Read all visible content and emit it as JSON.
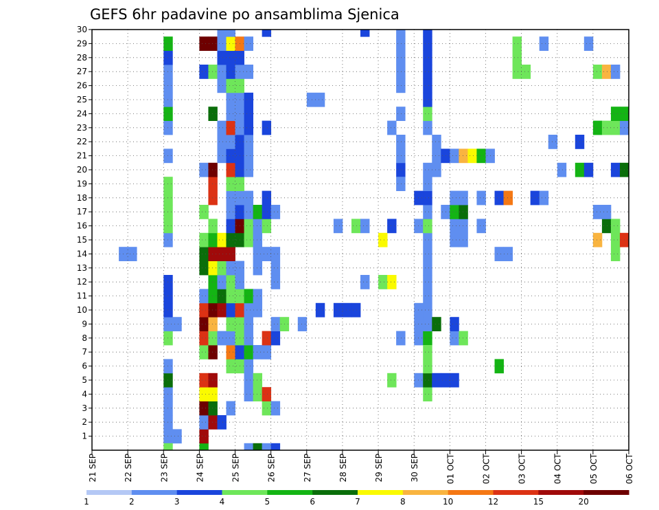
{
  "chart_data": {
    "type": "heatmap",
    "title": "GEFS 6hr padavine po ansamblima Sjenica",
    "x_ticks": [
      "21 SEP",
      "22 SEP",
      "23 SEP",
      "24 SEP",
      "25 SEP",
      "26 SEP",
      "27 SEP",
      "28 SEP",
      "29 SEP",
      "30 SEP",
      "01 OCT",
      "02 OCT",
      "03 OCT",
      "04 OCT",
      "05 OCT",
      "06 OCT"
    ],
    "y_ticks": [
      "1",
      "2",
      "3",
      "4",
      "5",
      "6",
      "7",
      "8",
      "9",
      "10",
      "11",
      "12",
      "13",
      "14",
      "15",
      "16",
      "17",
      "18",
      "19",
      "20",
      "21",
      "22",
      "23",
      "24",
      "25",
      "26",
      "27",
      "28",
      "29",
      "30"
    ],
    "xlim": [
      0,
      60
    ],
    "ylim": [
      0,
      30
    ],
    "grid": true,
    "colorbar": {
      "labels": [
        "1",
        "2",
        "3",
        "4",
        "5",
        "6",
        "7",
        "8",
        "10",
        "12",
        "15",
        "20"
      ],
      "colors": [
        "#b4c8f5",
        "#5f8ef0",
        "#1a45dc",
        "#6ee65a",
        "#14b414",
        "#0a6e0a",
        "#fafa00",
        "#f9b440",
        "#f57814",
        "#dc3214",
        "#a00a0a",
        "#6e0000"
      ]
    },
    "x_unit": "6-hour steps from 21 SEP 00Z",
    "y_unit": "ensemble member",
    "cells": [
      [
        8,
        1,
        1
      ],
      [
        8,
        2,
        1
      ],
      [
        8,
        3,
        1
      ],
      [
        8,
        4,
        1
      ],
      [
        8,
        5,
        5
      ],
      [
        8,
        6,
        1
      ],
      [
        8,
        8,
        3
      ],
      [
        8,
        9,
        1
      ],
      [
        8,
        10,
        2
      ],
      [
        8,
        11,
        2
      ],
      [
        8,
        12,
        2
      ],
      [
        8,
        15,
        1
      ],
      [
        8,
        16,
        3
      ],
      [
        8,
        17,
        3
      ],
      [
        8,
        18,
        3
      ],
      [
        8,
        19,
        3
      ],
      [
        8,
        21,
        1
      ],
      [
        8,
        23,
        1
      ],
      [
        8,
        24,
        4
      ],
      [
        8,
        25,
        1
      ],
      [
        8,
        26,
        1
      ],
      [
        8,
        27,
        1
      ],
      [
        8,
        28,
        2
      ],
      [
        8,
        29,
        4
      ],
      [
        9,
        1,
        1
      ],
      [
        9,
        9,
        1
      ],
      [
        3,
        14,
        1
      ],
      [
        4,
        14,
        1
      ],
      [
        8,
        0,
        3
      ],
      [
        12,
        0,
        4
      ],
      [
        12,
        1,
        10
      ],
      [
        12,
        2,
        1
      ],
      [
        12,
        3,
        11
      ],
      [
        12,
        4,
        6
      ],
      [
        12,
        5,
        9
      ],
      [
        12,
        7,
        3
      ],
      [
        12,
        8,
        9
      ],
      [
        12,
        9,
        11
      ],
      [
        12,
        10,
        9
      ],
      [
        12,
        11,
        1
      ],
      [
        12,
        13,
        5
      ],
      [
        12,
        14,
        5
      ],
      [
        12,
        15,
        3
      ],
      [
        12,
        17,
        3
      ],
      [
        12,
        20,
        1
      ],
      [
        12,
        27,
        2
      ],
      [
        12,
        29,
        11
      ],
      [
        13,
        2,
        10
      ],
      [
        13,
        3,
        5
      ],
      [
        13,
        4,
        6
      ],
      [
        13,
        5,
        10
      ],
      [
        13,
        7,
        11
      ],
      [
        13,
        8,
        3
      ],
      [
        13,
        9,
        7
      ],
      [
        13,
        10,
        11
      ],
      [
        13,
        11,
        4
      ],
      [
        13,
        12,
        4
      ],
      [
        13,
        13,
        6
      ],
      [
        13,
        14,
        10
      ],
      [
        13,
        15,
        4
      ],
      [
        13,
        16,
        3
      ],
      [
        13,
        18,
        9
      ],
      [
        13,
        19,
        9
      ],
      [
        13,
        20,
        11
      ],
      [
        13,
        24,
        5
      ],
      [
        13,
        27,
        3
      ],
      [
        13,
        29,
        11
      ],
      [
        14,
        2,
        2
      ],
      [
        14,
        8,
        1
      ],
      [
        14,
        10,
        10
      ],
      [
        14,
        11,
        5
      ],
      [
        14,
        12,
        1
      ],
      [
        14,
        13,
        3
      ],
      [
        14,
        14,
        10
      ],
      [
        14,
        15,
        6
      ],
      [
        14,
        21,
        1
      ],
      [
        14,
        22,
        1
      ],
      [
        14,
        23,
        1
      ],
      [
        14,
        26,
        1
      ],
      [
        14,
        27,
        1
      ],
      [
        14,
        28,
        2
      ],
      [
        14,
        29,
        1
      ],
      [
        14,
        30,
        1
      ],
      [
        15,
        3,
        1
      ],
      [
        15,
        6,
        3
      ],
      [
        15,
        7,
        8
      ],
      [
        15,
        8,
        1
      ],
      [
        15,
        9,
        3
      ],
      [
        15,
        10,
        2
      ],
      [
        15,
        11,
        3
      ],
      [
        15,
        12,
        3
      ],
      [
        15,
        13,
        1
      ],
      [
        15,
        14,
        10
      ],
      [
        15,
        15,
        5
      ],
      [
        15,
        16,
        2
      ],
      [
        15,
        17,
        1
      ],
      [
        15,
        18,
        1
      ],
      [
        15,
        19,
        3
      ],
      [
        15,
        20,
        9
      ],
      [
        15,
        21,
        2
      ],
      [
        15,
        22,
        1
      ],
      [
        15,
        23,
        9
      ],
      [
        15,
        24,
        1
      ],
      [
        15,
        25,
        1
      ],
      [
        15,
        26,
        3
      ],
      [
        15,
        27,
        2
      ],
      [
        15,
        28,
        2
      ],
      [
        15,
        29,
        6
      ],
      [
        15,
        30,
        1
      ],
      [
        16,
        6,
        3
      ],
      [
        16,
        7,
        2
      ],
      [
        16,
        8,
        3
      ],
      [
        16,
        9,
        3
      ],
      [
        16,
        10,
        9
      ],
      [
        16,
        11,
        3
      ],
      [
        16,
        12,
        1
      ],
      [
        16,
        13,
        1
      ],
      [
        16,
        15,
        5
      ],
      [
        16,
        16,
        11
      ],
      [
        16,
        17,
        2
      ],
      [
        16,
        18,
        1
      ],
      [
        16,
        19,
        3
      ],
      [
        16,
        20,
        2
      ],
      [
        16,
        21,
        2
      ],
      [
        16,
        22,
        2
      ],
      [
        16,
        23,
        1
      ],
      [
        16,
        24,
        1
      ],
      [
        16,
        25,
        1
      ],
      [
        16,
        26,
        3
      ],
      [
        16,
        27,
        1
      ],
      [
        16,
        28,
        2
      ],
      [
        16,
        29,
        8
      ],
      [
        17,
        0,
        1
      ],
      [
        17,
        4,
        1
      ],
      [
        17,
        5,
        1
      ],
      [
        17,
        6,
        1
      ],
      [
        17,
        7,
        4
      ],
      [
        17,
        8,
        1
      ],
      [
        17,
        9,
        1
      ],
      [
        17,
        10,
        1
      ],
      [
        17,
        11,
        4
      ],
      [
        17,
        15,
        3
      ],
      [
        17,
        16,
        3
      ],
      [
        17,
        17,
        1
      ],
      [
        17,
        18,
        1
      ],
      [
        17,
        20,
        1
      ],
      [
        17,
        21,
        1
      ],
      [
        17,
        22,
        1
      ],
      [
        17,
        23,
        2
      ],
      [
        17,
        24,
        2
      ],
      [
        17,
        25,
        2
      ],
      [
        17,
        27,
        1
      ],
      [
        17,
        29,
        1
      ],
      [
        18,
        0,
        5
      ],
      [
        18,
        4,
        3
      ],
      [
        18,
        5,
        3
      ],
      [
        18,
        7,
        1
      ],
      [
        18,
        10,
        1
      ],
      [
        18,
        11,
        1
      ],
      [
        18,
        13,
        1
      ],
      [
        18,
        14,
        1
      ],
      [
        18,
        15,
        1
      ],
      [
        18,
        16,
        1
      ],
      [
        18,
        17,
        4
      ],
      [
        19,
        0,
        1
      ],
      [
        19,
        3,
        3
      ],
      [
        19,
        4,
        9
      ],
      [
        19,
        7,
        1
      ],
      [
        19,
        8,
        9
      ],
      [
        19,
        14,
        1
      ],
      [
        19,
        16,
        3
      ],
      [
        19,
        17,
        2
      ],
      [
        19,
        18,
        2
      ],
      [
        19,
        23,
        2
      ],
      [
        19,
        30,
        2
      ],
      [
        20,
        0,
        2
      ],
      [
        20,
        3,
        1
      ],
      [
        20,
        8,
        2
      ],
      [
        20,
        9,
        1
      ],
      [
        20,
        12,
        1
      ],
      [
        20,
        13,
        1
      ],
      [
        20,
        14,
        1
      ],
      [
        20,
        17,
        1
      ],
      [
        21,
        9,
        3
      ],
      [
        23,
        9,
        1
      ],
      [
        25,
        10,
        2
      ],
      [
        27,
        10,
        2
      ],
      [
        28,
        10,
        2
      ],
      [
        29,
        10,
        2
      ],
      [
        24,
        25,
        1
      ],
      [
        25,
        25,
        1
      ],
      [
        27,
        16,
        1
      ],
      [
        29,
        16,
        3
      ],
      [
        30,
        16,
        1
      ],
      [
        30,
        12,
        1
      ],
      [
        32,
        15,
        6
      ],
      [
        32,
        12,
        3
      ],
      [
        33,
        12,
        6
      ],
      [
        33,
        16,
        2
      ],
      [
        33,
        5,
        3
      ],
      [
        34,
        20,
        2
      ],
      [
        34,
        21,
        1
      ],
      [
        34,
        8,
        1
      ],
      [
        34,
        30,
        1
      ],
      [
        33,
        23,
        1
      ],
      [
        34,
        19,
        1
      ],
      [
        34,
        22,
        1
      ],
      [
        34,
        24,
        1
      ],
      [
        34,
        26,
        1
      ],
      [
        34,
        27,
        1
      ],
      [
        34,
        28,
        1
      ],
      [
        34,
        29,
        1
      ],
      [
        30,
        30,
        2
      ],
      [
        36,
        5,
        1
      ],
      [
        36,
        8,
        1
      ],
      [
        36,
        9,
        1
      ],
      [
        36,
        10,
        1
      ],
      [
        36,
        16,
        1
      ],
      [
        36,
        18,
        2
      ],
      [
        37,
        8,
        4
      ],
      [
        37,
        9,
        1
      ],
      [
        37,
        10,
        1
      ],
      [
        37,
        11,
        1
      ],
      [
        37,
        12,
        1
      ],
      [
        37,
        13,
        1
      ],
      [
        37,
        14,
        1
      ],
      [
        37,
        15,
        1
      ],
      [
        37,
        16,
        3
      ],
      [
        37,
        17,
        1
      ],
      [
        37,
        18,
        2
      ],
      [
        37,
        19,
        1
      ],
      [
        37,
        20,
        1
      ],
      [
        37,
        23,
        1
      ],
      [
        37,
        24,
        3
      ],
      [
        37,
        25,
        2
      ],
      [
        37,
        26,
        2
      ],
      [
        37,
        27,
        2
      ],
      [
        37,
        28,
        2
      ],
      [
        37,
        29,
        2
      ],
      [
        37,
        30,
        2
      ],
      [
        37,
        4,
        3
      ],
      [
        37,
        5,
        5
      ],
      [
        37,
        6,
        3
      ],
      [
        37,
        7,
        3
      ],
      [
        38,
        5,
        2
      ],
      [
        38,
        9,
        5
      ],
      [
        38,
        21,
        1
      ],
      [
        38,
        20,
        1
      ],
      [
        38,
        22,
        1
      ],
      [
        39,
        5,
        2
      ],
      [
        39,
        17,
        1
      ],
      [
        39,
        21,
        2
      ],
      [
        40,
        5,
        2
      ],
      [
        40,
        8,
        1
      ],
      [
        40,
        9,
        2
      ],
      [
        40,
        15,
        1
      ],
      [
        40,
        16,
        1
      ],
      [
        40,
        17,
        4
      ],
      [
        40,
        18,
        1
      ],
      [
        40,
        21,
        1
      ],
      [
        41,
        8,
        3
      ],
      [
        41,
        15,
        1
      ],
      [
        41,
        16,
        1
      ],
      [
        41,
        17,
        5
      ],
      [
        41,
        18,
        1
      ],
      [
        41,
        21,
        7
      ],
      [
        42,
        21,
        6
      ],
      [
        43,
        21,
        4
      ],
      [
        43,
        16,
        1
      ],
      [
        43,
        18,
        1
      ],
      [
        44,
        21,
        1
      ],
      [
        45,
        6,
        4
      ],
      [
        45,
        14,
        1
      ],
      [
        45,
        18,
        2
      ],
      [
        46,
        14,
        1
      ],
      [
        46,
        18,
        8
      ],
      [
        47,
        27,
        3
      ],
      [
        47,
        28,
        3
      ],
      [
        47,
        29,
        3
      ],
      [
        48,
        27,
        3
      ],
      [
        49,
        18,
        2
      ],
      [
        50,
        18,
        1
      ],
      [
        50,
        29,
        1
      ],
      [
        51,
        22,
        1
      ],
      [
        52,
        20,
        1
      ],
      [
        54,
        20,
        4
      ],
      [
        54,
        22,
        2
      ],
      [
        55,
        20,
        2
      ],
      [
        55,
        29,
        1
      ],
      [
        56,
        15,
        7
      ],
      [
        56,
        17,
        1
      ],
      [
        56,
        23,
        4
      ],
      [
        56,
        27,
        3
      ],
      [
        57,
        16,
        5
      ],
      [
        57,
        17,
        1
      ],
      [
        57,
        23,
        3
      ],
      [
        57,
        27,
        7
      ],
      [
        58,
        14,
        3
      ],
      [
        58,
        15,
        3
      ],
      [
        58,
        16,
        3
      ],
      [
        58,
        20,
        2
      ],
      [
        58,
        23,
        3
      ],
      [
        58,
        24,
        4
      ],
      [
        58,
        27,
        1
      ],
      [
        59,
        15,
        9
      ],
      [
        59,
        23,
        1
      ],
      [
        59,
        24,
        4
      ],
      [
        59,
        20,
        5
      ]
    ]
  }
}
